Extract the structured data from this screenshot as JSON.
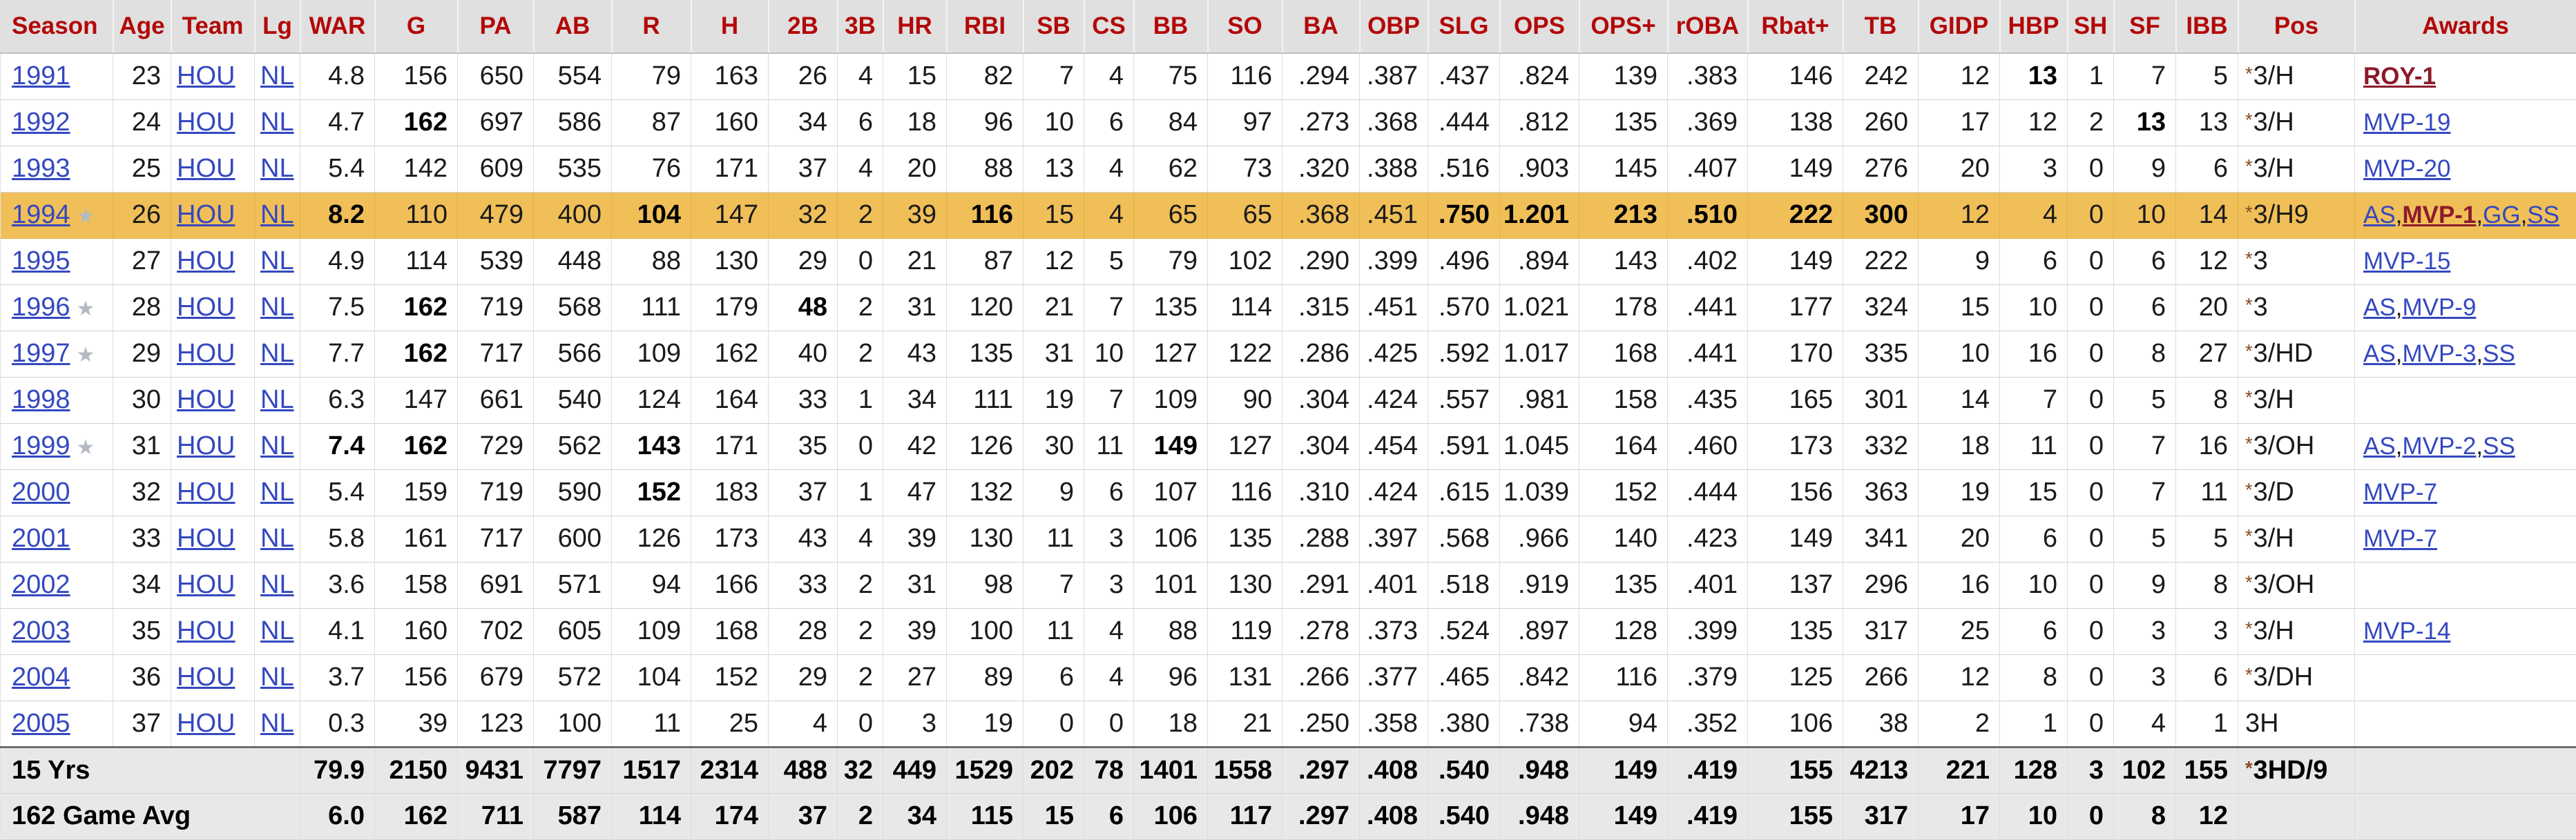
{
  "table": {
    "columns": [
      "Season",
      "Age",
      "Team",
      "Lg",
      "WAR",
      "G",
      "PA",
      "AB",
      "R",
      "H",
      "2B",
      "3B",
      "HR",
      "RBI",
      "SB",
      "CS",
      "BB",
      "SO",
      "BA",
      "OBP",
      "SLG",
      "OPS",
      "OPS+",
      "rOBA",
      "Rbat+",
      "TB",
      "GIDP",
      "HBP",
      "SH",
      "SF",
      "IBB",
      "Pos",
      "Awards"
    ],
    "rows": [
      {
        "season": "1991",
        "all_star": false,
        "highlight": false,
        "age": "23",
        "team": "HOU",
        "lg": "NL",
        "stats": [
          "4.8",
          "156",
          "650",
          "554",
          "79",
          "163",
          "26",
          "4",
          "15",
          "82",
          "7",
          "4",
          "75",
          "116",
          ".294",
          ".387",
          ".437",
          ".824",
          "139",
          ".383",
          "146",
          "242",
          "12",
          "13",
          "1",
          "7",
          "5"
        ],
        "bold": [
          23
        ],
        "pos": "*3/H",
        "awards": [
          {
            "t": "ROY-1",
            "won": true
          }
        ]
      },
      {
        "season": "1992",
        "all_star": false,
        "highlight": false,
        "age": "24",
        "team": "HOU",
        "lg": "NL",
        "stats": [
          "4.7",
          "162",
          "697",
          "586",
          "87",
          "160",
          "34",
          "6",
          "18",
          "96",
          "10",
          "6",
          "84",
          "97",
          ".273",
          ".368",
          ".444",
          ".812",
          "135",
          ".369",
          "138",
          "260",
          "17",
          "12",
          "2",
          "13",
          "13"
        ],
        "bold": [
          1,
          25
        ],
        "pos": "*3/H",
        "awards": [
          {
            "t": "MVP-19",
            "won": false
          }
        ]
      },
      {
        "season": "1993",
        "all_star": false,
        "highlight": false,
        "age": "25",
        "team": "HOU",
        "lg": "NL",
        "stats": [
          "5.4",
          "142",
          "609",
          "535",
          "76",
          "171",
          "37",
          "4",
          "20",
          "88",
          "13",
          "4",
          "62",
          "73",
          ".320",
          ".388",
          ".516",
          ".903",
          "145",
          ".407",
          "149",
          "276",
          "20",
          "3",
          "0",
          "9",
          "6"
        ],
        "bold": [],
        "pos": "*3/H",
        "awards": [
          {
            "t": "MVP-20",
            "won": false
          }
        ]
      },
      {
        "season": "1994",
        "all_star": true,
        "highlight": true,
        "age": "26",
        "team": "HOU",
        "lg": "NL",
        "stats": [
          "8.2",
          "110",
          "479",
          "400",
          "104",
          "147",
          "32",
          "2",
          "39",
          "116",
          "15",
          "4",
          "65",
          "65",
          ".368",
          ".451",
          ".750",
          "1.201",
          "213",
          ".510",
          "222",
          "300",
          "12",
          "4",
          "0",
          "10",
          "14"
        ],
        "bold": [
          0,
          4,
          9,
          16,
          17,
          18,
          19,
          20,
          21
        ],
        "pos": "*3/H9",
        "awards": [
          {
            "t": "AS",
            "won": false
          },
          {
            "t": "MVP-1",
            "won": true
          },
          {
            "t": "GG",
            "won": false
          },
          {
            "t": "SS",
            "won": false
          }
        ]
      },
      {
        "season": "1995",
        "all_star": false,
        "highlight": false,
        "age": "27",
        "team": "HOU",
        "lg": "NL",
        "stats": [
          "4.9",
          "114",
          "539",
          "448",
          "88",
          "130",
          "29",
          "0",
          "21",
          "87",
          "12",
          "5",
          "79",
          "102",
          ".290",
          ".399",
          ".496",
          ".894",
          "143",
          ".402",
          "149",
          "222",
          "9",
          "6",
          "0",
          "6",
          "12"
        ],
        "bold": [],
        "pos": "*3",
        "awards": [
          {
            "t": "MVP-15",
            "won": false
          }
        ]
      },
      {
        "season": "1996",
        "all_star": true,
        "highlight": false,
        "age": "28",
        "team": "HOU",
        "lg": "NL",
        "stats": [
          "7.5",
          "162",
          "719",
          "568",
          "111",
          "179",
          "48",
          "2",
          "31",
          "120",
          "21",
          "7",
          "135",
          "114",
          ".315",
          ".451",
          ".570",
          "1.021",
          "178",
          ".441",
          "177",
          "324",
          "15",
          "10",
          "0",
          "6",
          "20"
        ],
        "bold": [
          1,
          6
        ],
        "pos": "*3",
        "awards": [
          {
            "t": "AS",
            "won": false
          },
          {
            "t": "MVP-9",
            "won": false
          }
        ]
      },
      {
        "season": "1997",
        "all_star": true,
        "highlight": false,
        "age": "29",
        "team": "HOU",
        "lg": "NL",
        "stats": [
          "7.7",
          "162",
          "717",
          "566",
          "109",
          "162",
          "40",
          "2",
          "43",
          "135",
          "31",
          "10",
          "127",
          "122",
          ".286",
          ".425",
          ".592",
          "1.017",
          "168",
          ".441",
          "170",
          "335",
          "10",
          "16",
          "0",
          "8",
          "27"
        ],
        "bold": [
          1
        ],
        "pos": "*3/HD",
        "awards": [
          {
            "t": "AS",
            "won": false
          },
          {
            "t": "MVP-3",
            "won": false
          },
          {
            "t": "SS",
            "won": false
          }
        ]
      },
      {
        "season": "1998",
        "all_star": false,
        "highlight": false,
        "age": "30",
        "team": "HOU",
        "lg": "NL",
        "stats": [
          "6.3",
          "147",
          "661",
          "540",
          "124",
          "164",
          "33",
          "1",
          "34",
          "111",
          "19",
          "7",
          "109",
          "90",
          ".304",
          ".424",
          ".557",
          ".981",
          "158",
          ".435",
          "165",
          "301",
          "14",
          "7",
          "0",
          "5",
          "8"
        ],
        "bold": [],
        "pos": "*3/H",
        "awards": []
      },
      {
        "season": "1999",
        "all_star": true,
        "highlight": false,
        "age": "31",
        "team": "HOU",
        "lg": "NL",
        "stats": [
          "7.4",
          "162",
          "729",
          "562",
          "143",
          "171",
          "35",
          "0",
          "42",
          "126",
          "30",
          "11",
          "149",
          "127",
          ".304",
          ".454",
          ".591",
          "1.045",
          "164",
          ".460",
          "173",
          "332",
          "18",
          "11",
          "0",
          "7",
          "16"
        ],
        "bold": [
          0,
          1,
          4,
          12
        ],
        "pos": "*3/OH",
        "awards": [
          {
            "t": "AS",
            "won": false
          },
          {
            "t": "MVP-2",
            "won": false
          },
          {
            "t": "SS",
            "won": false
          }
        ]
      },
      {
        "season": "2000",
        "all_star": false,
        "highlight": false,
        "age": "32",
        "team": "HOU",
        "lg": "NL",
        "stats": [
          "5.4",
          "159",
          "719",
          "590",
          "152",
          "183",
          "37",
          "1",
          "47",
          "132",
          "9",
          "6",
          "107",
          "116",
          ".310",
          ".424",
          ".615",
          "1.039",
          "152",
          ".444",
          "156",
          "363",
          "19",
          "15",
          "0",
          "7",
          "11"
        ],
        "bold": [
          4
        ],
        "pos": "*3/D",
        "awards": [
          {
            "t": "MVP-7",
            "won": false
          }
        ]
      },
      {
        "season": "2001",
        "all_star": false,
        "highlight": false,
        "age": "33",
        "team": "HOU",
        "lg": "NL",
        "stats": [
          "5.8",
          "161",
          "717",
          "600",
          "126",
          "173",
          "43",
          "4",
          "39",
          "130",
          "11",
          "3",
          "106",
          "135",
          ".288",
          ".397",
          ".568",
          ".966",
          "140",
          ".423",
          "149",
          "341",
          "20",
          "6",
          "0",
          "5",
          "5"
        ],
        "bold": [],
        "pos": "*3/H",
        "awards": [
          {
            "t": "MVP-7",
            "won": false
          }
        ]
      },
      {
        "season": "2002",
        "all_star": false,
        "highlight": false,
        "age": "34",
        "team": "HOU",
        "lg": "NL",
        "stats": [
          "3.6",
          "158",
          "691",
          "571",
          "94",
          "166",
          "33",
          "2",
          "31",
          "98",
          "7",
          "3",
          "101",
          "130",
          ".291",
          ".401",
          ".518",
          ".919",
          "135",
          ".401",
          "137",
          "296",
          "16",
          "10",
          "0",
          "9",
          "8"
        ],
        "bold": [],
        "pos": "*3/OH",
        "awards": []
      },
      {
        "season": "2003",
        "all_star": false,
        "highlight": false,
        "age": "35",
        "team": "HOU",
        "lg": "NL",
        "stats": [
          "4.1",
          "160",
          "702",
          "605",
          "109",
          "168",
          "28",
          "2",
          "39",
          "100",
          "11",
          "4",
          "88",
          "119",
          ".278",
          ".373",
          ".524",
          ".897",
          "128",
          ".399",
          "135",
          "317",
          "25",
          "6",
          "0",
          "3",
          "3"
        ],
        "bold": [],
        "pos": "*3/H",
        "awards": [
          {
            "t": "MVP-14",
            "won": false
          }
        ]
      },
      {
        "season": "2004",
        "all_star": false,
        "highlight": false,
        "age": "36",
        "team": "HOU",
        "lg": "NL",
        "stats": [
          "3.7",
          "156",
          "679",
          "572",
          "104",
          "152",
          "29",
          "2",
          "27",
          "89",
          "6",
          "4",
          "96",
          "131",
          ".266",
          ".377",
          ".465",
          ".842",
          "116",
          ".379",
          "125",
          "266",
          "12",
          "8",
          "0",
          "3",
          "6"
        ],
        "bold": [],
        "pos": "*3/DH",
        "awards": []
      },
      {
        "season": "2005",
        "all_star": false,
        "highlight": false,
        "age": "37",
        "team": "HOU",
        "lg": "NL",
        "stats": [
          "0.3",
          "39",
          "123",
          "100",
          "11",
          "25",
          "4",
          "0",
          "3",
          "19",
          "0",
          "0",
          "18",
          "21",
          ".250",
          ".358",
          ".380",
          ".738",
          "94",
          ".352",
          "106",
          "38",
          "2",
          "1",
          "0",
          "4",
          "1"
        ],
        "bold": [],
        "pos": "3H",
        "awards": []
      }
    ],
    "footer": [
      {
        "label": "15 Yrs",
        "stats": [
          "79.9",
          "2150",
          "9431",
          "7797",
          "1517",
          "2314",
          "488",
          "32",
          "449",
          "1529",
          "202",
          "78",
          "1401",
          "1558",
          ".297",
          ".408",
          ".540",
          ".948",
          "149",
          ".419",
          "155",
          "4213",
          "221",
          "128",
          "3",
          "102",
          "155"
        ],
        "pos": "*3HD/9",
        "awards": []
      },
      {
        "label": "162 Game Avg",
        "stats": [
          "6.0",
          "162",
          "711",
          "587",
          "114",
          "174",
          "37",
          "2",
          "34",
          "115",
          "15",
          "6",
          "106",
          "117",
          ".297",
          ".408",
          ".540",
          ".948",
          "149",
          ".419",
          "155",
          "317",
          "17",
          "10",
          "0",
          "8",
          "12"
        ],
        "pos": "",
        "awards": []
      }
    ]
  },
  "icons": {
    "all_star": "all-star-icon",
    "pos_primary_marker": "*"
  },
  "colors": {
    "header_text": "#b30808",
    "header_bg": "#e0e0e0",
    "link_blue": "#3448c0",
    "won_award_maroon": "#8c1a2b",
    "highlight_gold": "#f0bf58",
    "footer_bg": "#e8e8e8",
    "star_gray": "#b4bac4"
  }
}
